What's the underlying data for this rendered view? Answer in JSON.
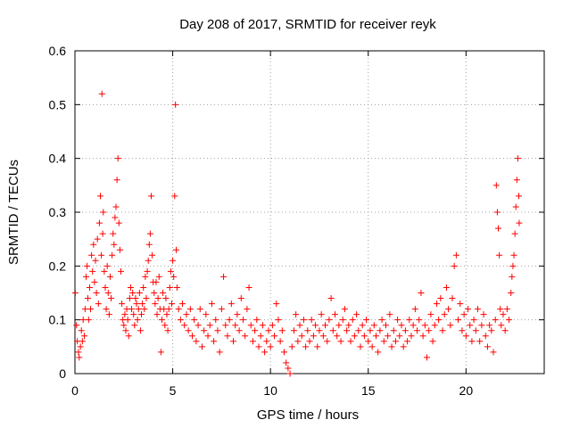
{
  "chart_data": {
    "type": "scatter",
    "title": "Day 208 of 2017, SRMTID for receiver reyk",
    "xlabel": "GPS time / hours",
    "ylabel": "SRMTID / TECUs",
    "xlim": [
      0,
      24
    ],
    "ylim": [
      0,
      0.6
    ],
    "xticks": [
      0,
      5,
      10,
      15,
      20
    ],
    "yticks": [
      0,
      0.1,
      0.2,
      0.3,
      0.4,
      0.5,
      0.6
    ],
    "grid": true,
    "marker": "plus",
    "color": "#ff0000",
    "points": [
      [
        0.02,
        0.15
      ],
      [
        0.08,
        0.09
      ],
      [
        0.12,
        0.06
      ],
      [
        0.18,
        0.04
      ],
      [
        0.22,
        0.03
      ],
      [
        0.28,
        0.05
      ],
      [
        0.33,
        0.08
      ],
      [
        0.38,
        0.06
      ],
      [
        0.42,
        0.1
      ],
      [
        0.48,
        0.07
      ],
      [
        0.52,
        0.12
      ],
      [
        0.57,
        0.18
      ],
      [
        0.62,
        0.2
      ],
      [
        0.66,
        0.14
      ],
      [
        0.7,
        0.1
      ],
      [
        0.75,
        0.16
      ],
      [
        0.8,
        0.12
      ],
      [
        0.85,
        0.22
      ],
      [
        0.9,
        0.19
      ],
      [
        0.95,
        0.24
      ],
      [
        1.0,
        0.17
      ],
      [
        1.05,
        0.21
      ],
      [
        1.1,
        0.15
      ],
      [
        1.15,
        0.25
      ],
      [
        1.2,
        0.13
      ],
      [
        1.25,
        0.28
      ],
      [
        1.3,
        0.33
      ],
      [
        1.35,
        0.22
      ],
      [
        1.38,
        0.52
      ],
      [
        1.42,
        0.26
      ],
      [
        1.45,
        0.3
      ],
      [
        1.5,
        0.19
      ],
      [
        1.55,
        0.16
      ],
      [
        1.6,
        0.12
      ],
      [
        1.65,
        0.2
      ],
      [
        1.7,
        0.15
      ],
      [
        1.75,
        0.11
      ],
      [
        1.8,
        0.18
      ],
      [
        1.85,
        0.14
      ],
      [
        1.9,
        0.22
      ],
      [
        1.95,
        0.26
      ],
      [
        2.0,
        0.24
      ],
      [
        2.05,
        0.29
      ],
      [
        2.1,
        0.31
      ],
      [
        2.15,
        0.36
      ],
      [
        2.2,
        0.4
      ],
      [
        2.25,
        0.28
      ],
      [
        2.3,
        0.23
      ],
      [
        2.35,
        0.19
      ],
      [
        2.4,
        0.13
      ],
      [
        2.45,
        0.1
      ],
      [
        2.5,
        0.09
      ],
      [
        2.55,
        0.11
      ],
      [
        2.6,
        0.08
      ],
      [
        2.65,
        0.12
      ],
      [
        2.7,
        0.1
      ],
      [
        2.75,
        0.07
      ],
      [
        2.8,
        0.14
      ],
      [
        2.85,
        0.16
      ],
      [
        2.9,
        0.12
      ],
      [
        2.95,
        0.15
      ],
      [
        3.0,
        0.11
      ],
      [
        3.05,
        0.09
      ],
      [
        3.1,
        0.14
      ],
      [
        3.15,
        0.13
      ],
      [
        3.2,
        0.1
      ],
      [
        3.25,
        0.12
      ],
      [
        3.3,
        0.15
      ],
      [
        3.35,
        0.08
      ],
      [
        3.4,
        0.11
      ],
      [
        3.45,
        0.13
      ],
      [
        3.5,
        0.16
      ],
      [
        3.55,
        0.12
      ],
      [
        3.6,
        0.18
      ],
      [
        3.65,
        0.14
      ],
      [
        3.7,
        0.19
      ],
      [
        3.75,
        0.21
      ],
      [
        3.8,
        0.24
      ],
      [
        3.85,
        0.26
      ],
      [
        3.9,
        0.33
      ],
      [
        3.95,
        0.22
      ],
      [
        4.0,
        0.17
      ],
      [
        4.05,
        0.15
      ],
      [
        4.1,
        0.13
      ],
      [
        4.15,
        0.17
      ],
      [
        4.2,
        0.11
      ],
      [
        4.25,
        0.14
      ],
      [
        4.3,
        0.18
      ],
      [
        4.35,
        0.12
      ],
      [
        4.4,
        0.04
      ],
      [
        4.45,
        0.1
      ],
      [
        4.5,
        0.15
      ],
      [
        4.55,
        0.12
      ],
      [
        4.6,
        0.09
      ],
      [
        4.65,
        0.14
      ],
      [
        4.7,
        0.11
      ],
      [
        4.75,
        0.08
      ],
      [
        4.8,
        0.12
      ],
      [
        4.85,
        0.16
      ],
      [
        4.9,
        0.19
      ],
      [
        4.95,
        0.13
      ],
      [
        5.0,
        0.21
      ],
      [
        5.05,
        0.18
      ],
      [
        5.1,
        0.33
      ],
      [
        5.14,
        0.5
      ],
      [
        5.18,
        0.23
      ],
      [
        5.22,
        0.16
      ],
      [
        5.3,
        0.12
      ],
      [
        5.4,
        0.1
      ],
      [
        5.5,
        0.13
      ],
      [
        5.6,
        0.09
      ],
      [
        5.7,
        0.11
      ],
      [
        5.8,
        0.08
      ],
      [
        5.9,
        0.12
      ],
      [
        6.0,
        0.07
      ],
      [
        6.1,
        0.1
      ],
      [
        6.2,
        0.06
      ],
      [
        6.3,
        0.09
      ],
      [
        6.4,
        0.12
      ],
      [
        6.5,
        0.05
      ],
      [
        6.6,
        0.08
      ],
      [
        6.7,
        0.11
      ],
      [
        6.8,
        0.07
      ],
      [
        6.9,
        0.09
      ],
      [
        7.0,
        0.13
      ],
      [
        7.1,
        0.06
      ],
      [
        7.2,
        0.1
      ],
      [
        7.3,
        0.08
      ],
      [
        7.4,
        0.04
      ],
      [
        7.5,
        0.12
      ],
      [
        7.6,
        0.18
      ],
      [
        7.7,
        0.09
      ],
      [
        7.8,
        0.07
      ],
      [
        7.9,
        0.1
      ],
      [
        8.0,
        0.13
      ],
      [
        8.1,
        0.06
      ],
      [
        8.2,
        0.09
      ],
      [
        8.3,
        0.11
      ],
      [
        8.4,
        0.08
      ],
      [
        8.5,
        0.14
      ],
      [
        8.6,
        0.1
      ],
      [
        8.7,
        0.07
      ],
      [
        8.8,
        0.12
      ],
      [
        8.9,
        0.16
      ],
      [
        9.0,
        0.09
      ],
      [
        9.1,
        0.06
      ],
      [
        9.2,
        0.08
      ],
      [
        9.3,
        0.1
      ],
      [
        9.4,
        0.05
      ],
      [
        9.5,
        0.07
      ],
      [
        9.6,
        0.09
      ],
      [
        9.7,
        0.04
      ],
      [
        9.8,
        0.06
      ],
      [
        9.9,
        0.08
      ],
      [
        10.0,
        0.05
      ],
      [
        10.1,
        0.09
      ],
      [
        10.2,
        0.07
      ],
      [
        10.3,
        0.13
      ],
      [
        10.4,
        0.1
      ],
      [
        10.5,
        0.06
      ],
      [
        10.6,
        0.08
      ],
      [
        10.7,
        0.04
      ],
      [
        10.8,
        0.02
      ],
      [
        10.9,
        0.01
      ],
      [
        11.0,
        0.0
      ],
      [
        11.1,
        0.05
      ],
      [
        11.2,
        0.08
      ],
      [
        11.3,
        0.11
      ],
      [
        11.4,
        0.06
      ],
      [
        11.5,
        0.09
      ],
      [
        11.6,
        0.07
      ],
      [
        11.7,
        0.1
      ],
      [
        11.8,
        0.05
      ],
      [
        11.9,
        0.08
      ],
      [
        12.0,
        0.06
      ],
      [
        12.1,
        0.1
      ],
      [
        12.2,
        0.07
      ],
      [
        12.3,
        0.09
      ],
      [
        12.4,
        0.05
      ],
      [
        12.5,
        0.08
      ],
      [
        12.6,
        0.11
      ],
      [
        12.7,
        0.07
      ],
      [
        12.8,
        0.09
      ],
      [
        12.9,
        0.06
      ],
      [
        13.0,
        0.1
      ],
      [
        13.1,
        0.14
      ],
      [
        13.2,
        0.08
      ],
      [
        13.3,
        0.11
      ],
      [
        13.4,
        0.07
      ],
      [
        13.5,
        0.09
      ],
      [
        13.6,
        0.06
      ],
      [
        13.7,
        0.1
      ],
      [
        13.8,
        0.12
      ],
      [
        13.9,
        0.08
      ],
      [
        14.0,
        0.09
      ],
      [
        14.1,
        0.06
      ],
      [
        14.2,
        0.1
      ],
      [
        14.3,
        0.07
      ],
      [
        14.4,
        0.11
      ],
      [
        14.5,
        0.08
      ],
      [
        14.6,
        0.05
      ],
      [
        14.7,
        0.09
      ],
      [
        14.8,
        0.07
      ],
      [
        14.9,
        0.1
      ],
      [
        15.0,
        0.06
      ],
      [
        15.1,
        0.08
      ],
      [
        15.2,
        0.05
      ],
      [
        15.3,
        0.09
      ],
      [
        15.4,
        0.07
      ],
      [
        15.5,
        0.04
      ],
      [
        15.6,
        0.08
      ],
      [
        15.7,
        0.1
      ],
      [
        15.8,
        0.06
      ],
      [
        15.9,
        0.09
      ],
      [
        16.0,
        0.07
      ],
      [
        16.1,
        0.11
      ],
      [
        16.2,
        0.05
      ],
      [
        16.3,
        0.08
      ],
      [
        16.4,
        0.06
      ],
      [
        16.5,
        0.1
      ],
      [
        16.6,
        0.07
      ],
      [
        16.7,
        0.09
      ],
      [
        16.8,
        0.05
      ],
      [
        16.9,
        0.08
      ],
      [
        17.0,
        0.06
      ],
      [
        17.1,
        0.1
      ],
      [
        17.2,
        0.07
      ],
      [
        17.3,
        0.09
      ],
      [
        17.4,
        0.12
      ],
      [
        17.5,
        0.08
      ],
      [
        17.6,
        0.1
      ],
      [
        17.7,
        0.15
      ],
      [
        17.8,
        0.07
      ],
      [
        17.9,
        0.09
      ],
      [
        18.0,
        0.03
      ],
      [
        18.1,
        0.08
      ],
      [
        18.2,
        0.11
      ],
      [
        18.3,
        0.06
      ],
      [
        18.4,
        0.09
      ],
      [
        18.5,
        0.13
      ],
      [
        18.6,
        0.1
      ],
      [
        18.7,
        0.14
      ],
      [
        18.8,
        0.08
      ],
      [
        18.9,
        0.11
      ],
      [
        19.0,
        0.16
      ],
      [
        19.1,
        0.12
      ],
      [
        19.2,
        0.09
      ],
      [
        19.3,
        0.14
      ],
      [
        19.4,
        0.2
      ],
      [
        19.5,
        0.22
      ],
      [
        19.6,
        0.1
      ],
      [
        19.7,
        0.13
      ],
      [
        19.8,
        0.08
      ],
      [
        19.9,
        0.11
      ],
      [
        20.0,
        0.07
      ],
      [
        20.1,
        0.12
      ],
      [
        20.2,
        0.09
      ],
      [
        20.3,
        0.06
      ],
      [
        20.4,
        0.1
      ],
      [
        20.5,
        0.08
      ],
      [
        20.6,
        0.12
      ],
      [
        20.7,
        0.06
      ],
      [
        20.8,
        0.09
      ],
      [
        20.9,
        0.11
      ],
      [
        21.0,
        0.07
      ],
      [
        21.1,
        0.05
      ],
      [
        21.2,
        0.09
      ],
      [
        21.3,
        0.08
      ],
      [
        21.4,
        0.04
      ],
      [
        21.5,
        0.1
      ],
      [
        21.55,
        0.35
      ],
      [
        21.6,
        0.3
      ],
      [
        21.65,
        0.27
      ],
      [
        21.7,
        0.22
      ],
      [
        21.75,
        0.12
      ],
      [
        21.8,
        0.09
      ],
      [
        21.9,
        0.11
      ],
      [
        22.0,
        0.08
      ],
      [
        22.1,
        0.12
      ],
      [
        22.2,
        0.1
      ],
      [
        22.3,
        0.15
      ],
      [
        22.35,
        0.18
      ],
      [
        22.4,
        0.2
      ],
      [
        22.45,
        0.22
      ],
      [
        22.5,
        0.26
      ],
      [
        22.55,
        0.31
      ],
      [
        22.6,
        0.36
      ],
      [
        22.65,
        0.4
      ],
      [
        22.7,
        0.33
      ],
      [
        22.72,
        0.28
      ]
    ]
  }
}
